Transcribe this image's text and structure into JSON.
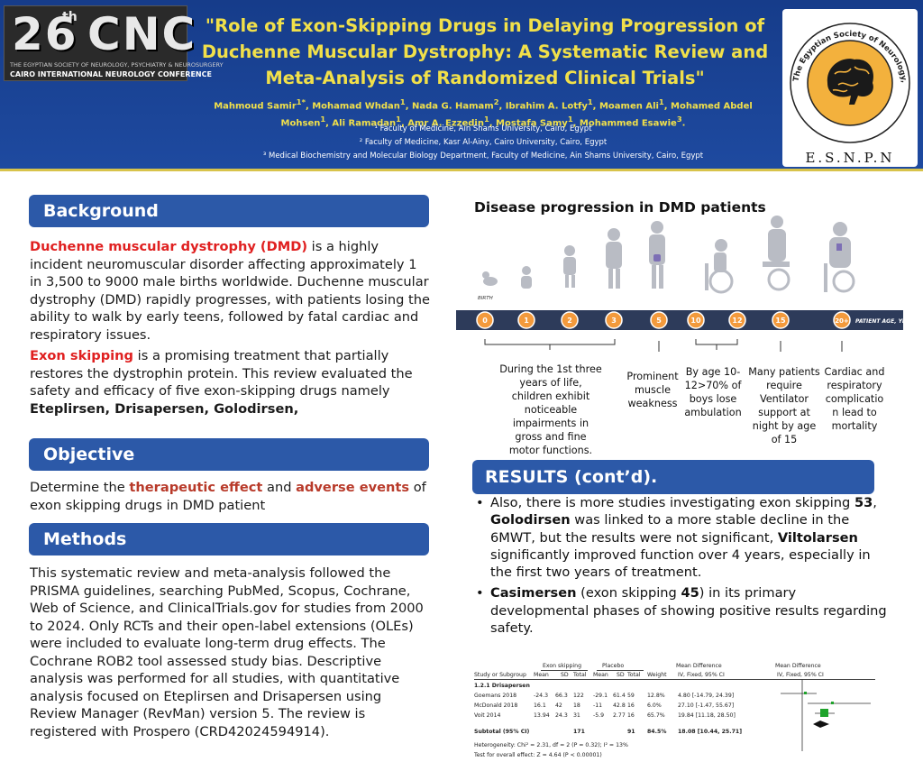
{
  "header": {
    "logo": {
      "main": "26",
      "sup": "th",
      "main2": "CNC",
      "sub1": "THE EGYPTIAN SOCIETY OF NEUROLOGY, PSYCHIATRY & NEUROSURGERY",
      "sub2": "CAIRO INTERNATIONAL NEUROLOGY CONFERENCE"
    },
    "title": "\"Role of Exon-Skipping Drugs in Delaying Progression of Duchenne Muscular Dystrophy: A Systematic Review and Meta-Analysis of Randomized Clinical Trials\"",
    "authors_html": "Mahmoud Samir<sup>1*</sup>, Mohamad Whdan<sup>1</sup>, Nada G. Hamam<sup>2</sup>, Ibrahim A. Lotfy<sup>1</sup>, Moamen Ali<sup>1</sup>, Mohamed Abdel Mohsen<sup>1</sup>, Ali Ramadan<sup>1</sup>, Amr A. Ezzedin<sup>1</sup>, Mostafa Samy<sup>1</sup>, Mohammed Esawie<sup>3</sup>.",
    "affiliations": [
      "¹ Faculty of Medicine, Ain Shams University, Cairo, Egypt",
      "² Faculty of Medicine, Kasr Al-Ainy, Cairo University, Cairo, Egypt",
      "³ Medical Biochemistry and Molecular Biology Department, Faculty of Medicine, Ain Shams University, Cairo, Egypt"
    ],
    "society_logo": {
      "ring_text": "The Egyptian Society of Neurology, Psychiatry & Neurosurgery",
      "acronym": "E.S.N.P.N"
    }
  },
  "background": {
    "heading": "Background",
    "p1_red": "Duchenne muscular dystrophy (DMD)",
    "p1_rest": " is a highly incident neuromuscular disorder affecting approximately 1 in 3,500 to 9000 male births worldwide. Duchenne muscular dystrophy (DMD) rapidly progresses, with patients losing the ability to walk by early teens, followed by fatal cardiac and respiratory issues.",
    "p2_red": "Exon skipping",
    "p2_rest": " is a promising treatment that partially restores the dystrophin protein. This review evaluated the safety and efficacy of five exon-skipping drugs namely ",
    "p2_bold": "Eteplirsen, Drisapersen, Golodirsen,"
  },
  "objective": {
    "heading": "Objective",
    "t1": "Determine the ",
    "t2": "therapeutic effect",
    "t3": " and ",
    "t4": "adverse events",
    "t5": " of exon skipping drugs in DMD patient"
  },
  "methods": {
    "heading": "Methods",
    "text": "This systematic review and meta-analysis followed the PRISMA guidelines, searching PubMed, Scopus, Cochrane, Web of Science, and ClinicalTrials.gov for studies from 2000 to 2024. Only RCTs and their open-label extensions (OLEs) were included to evaluate long-term drug effects. The Cochrane ROB2 tool assessed study bias. Descriptive analysis was performed for all studies, with quantitative analysis focused on Eteplirsen and Drisapersen using Review Manager (RevMan) version 5. The review is registered with Prospero (CRD42024594914)."
  },
  "disease_progression": {
    "title": "Disease progression in DMD patients",
    "birth_label": "BIRTH",
    "axis_label": "PATIENT AGE, YEARS",
    "ages": [
      "0",
      "1",
      "2",
      "3",
      "5",
      "10",
      "12",
      "15",
      "20+"
    ],
    "notes": [
      "During the 1st three years of life, children exhibit noticeable impairments in gross and fine motor functions.",
      "Prominent muscle weakness",
      "By age 10-12>70% of boys lose ambulation",
      "Many patients require Ventilator support at night by age of 15",
      "Cardiac and respiratory complicatio n lead to mortality"
    ]
  },
  "results": {
    "heading": "RESULTS (cont’d).",
    "b1_a": "Also, there is more studies investigating exon skipping ",
    "b1_b": "53",
    "b1_c": ", ",
    "b1_d": "Golodirsen",
    "b1_e": " was linked to a more stable decline in the 6MWT, but the results were not significant, ",
    "b1_f": "Viltolarsen",
    "b1_g": " significantly improved function over 4 years, especially in the first two years of treatment.",
    "b2_a": "Casimersen",
    "b2_b": " (exon skipping ",
    "b2_c": "45",
    "b2_d": ") in its primary developmental phases of showing positive results regarding safety."
  },
  "forest_plot": {
    "group_exp": "Exon skipping",
    "group_ctl": "Placebo",
    "md_head": "Mean Difference",
    "md_head2": "Mean Difference",
    "sub_md": "IV, Fixed, 95% CI",
    "sub_md2": "IV, Fixed, 95% CI",
    "cols": [
      "Study or Subgroup",
      "Mean",
      "SD",
      "Total",
      "Mean",
      "SD",
      "Total",
      "Weight"
    ],
    "subgroup": "1.2.1 Drisapersen",
    "rows": [
      {
        "study": "Goemans 2018",
        "m1": "-24.3",
        "sd1": "66.3",
        "n1": "122",
        "m2": "-29.1",
        "sd2": "61.4",
        "n2": "59",
        "w": "12.8%",
        "ci": "4.80 [-14.79, 24.39]"
      },
      {
        "study": "McDonald 2018",
        "m1": "16.1",
        "sd1": "42",
        "n1": "18",
        "m2": "-11",
        "sd2": "42.8",
        "n2": "16",
        "w": "6.0%",
        "ci": "27.10 [-1.47, 55.67]"
      },
      {
        "study": "Voit 2014",
        "m1": "13.94",
        "sd1": "24.3",
        "n1": "31",
        "m2": "-5.9",
        "sd2": "2.77",
        "n2": "16",
        "w": "65.7%",
        "ci": "19.84 [11.18, 28.50]"
      }
    ],
    "subtotal": {
      "label": "Subtotal (95% CI)",
      "n1": "171",
      "n2": "91",
      "w": "84.5%",
      "ci": "18.08 [10.44, 25.71]"
    },
    "heterogeneity": "Heterogeneity: Chi² = 2.31, df = 2 (P = 0.32); I² = 13%",
    "overall": "Test for overall effect: Z = 4.64 (P < 0.00001)"
  },
  "colors": {
    "header_bg": "#1e4aa0",
    "title_yellow": "#f1e04a",
    "section_blue": "#2c59a8",
    "highlight_red": "#e02020",
    "timeline_orange": "#f39a3c",
    "timeline_bar": "#2d3b5a"
  }
}
